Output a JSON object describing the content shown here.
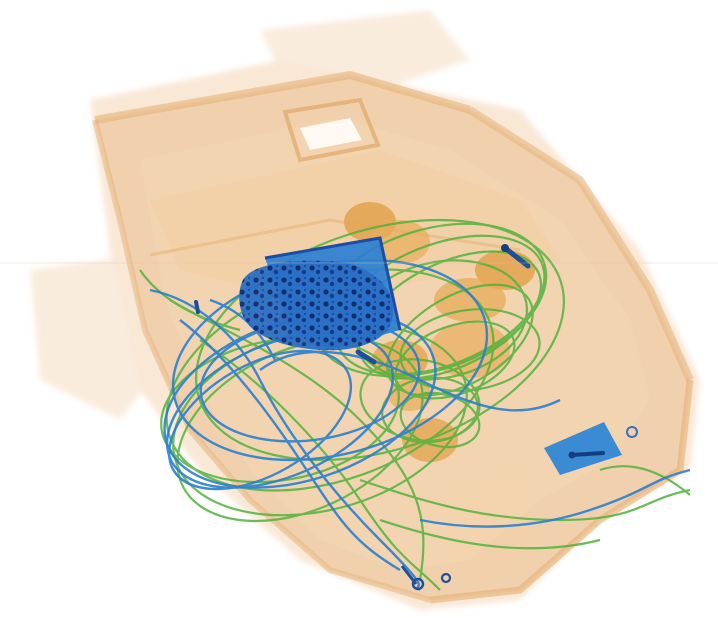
{
  "scene": {
    "subject": "x-ray-scan-of-bag",
    "palette": {
      "background": "#ffffff",
      "organic_low": "#f5dcc0",
      "organic_mid": "#ecbf8c",
      "organic_high": "#e0a35a",
      "inorganic": "#5bb540",
      "metal_light": "#2f86d6",
      "metal_dense": "#1a3a8f"
    }
  }
}
